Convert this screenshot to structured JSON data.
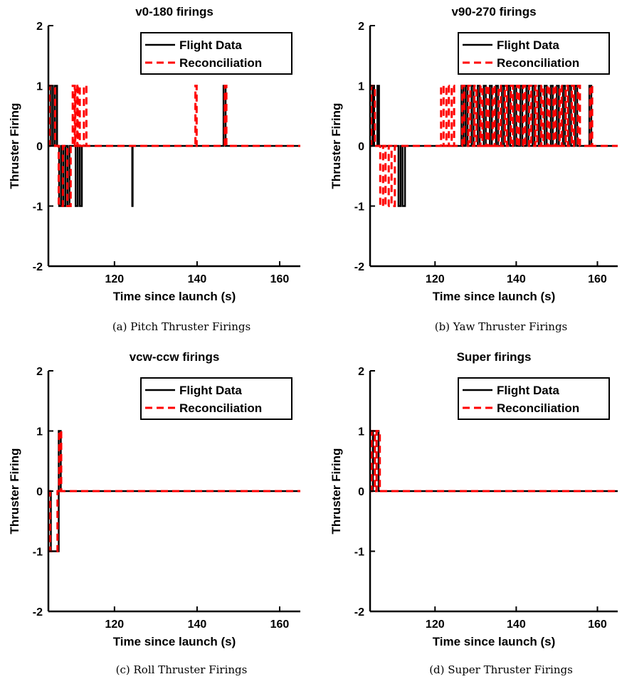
{
  "chart_data": [
    {
      "type": "line",
      "title": "v0-180 firings",
      "caption": "(a) Pitch Thruster Firings",
      "xlabel": "Time since launch (s)",
      "ylabel": "Thruster Firing",
      "xlim": [
        104,
        165
      ],
      "ylim": [
        -2,
        2
      ],
      "xticks": [
        120,
        140,
        160
      ],
      "yticks": [
        2,
        1,
        0,
        -1,
        -2
      ],
      "legend": "top-right",
      "series": [
        {
          "name": "Flight Data",
          "color": "#000000",
          "style": "solid",
          "pulses": [
            [
              104.6,
              105.1,
              1
            ],
            [
              105.6,
              106.1,
              1
            ],
            [
              106.6,
              107.1,
              -1
            ],
            [
              107.6,
              108.1,
              -1
            ],
            [
              108.6,
              109.1,
              -1
            ],
            [
              110.6,
              111.1,
              -1
            ],
            [
              111.6,
              112.1,
              -1
            ],
            [
              124.3,
              124.4,
              -1
            ],
            [
              146.4,
              146.9,
              1
            ]
          ]
        },
        {
          "name": "Reconciliation",
          "color": "#ff0000",
          "style": "dashed",
          "pulses": [
            [
              104.3,
              105.6,
              1
            ],
            [
              106.5,
              107.5,
              -1
            ],
            [
              108.6,
              109.4,
              -1
            ],
            [
              109.9,
              110.4,
              1
            ],
            [
              110.5,
              111.0,
              1
            ],
            [
              111.1,
              111.6,
              1
            ],
            [
              112.6,
              113.2,
              1
            ],
            [
              139.6,
              139.9,
              1
            ],
            [
              146.7,
              147.1,
              1
            ]
          ]
        }
      ]
    },
    {
      "type": "line",
      "title": "v90-270 firings",
      "caption": "(b) Yaw Thruster Firings",
      "xlabel": "Time since launch (s)",
      "ylabel": "Thruster Firing",
      "xlim": [
        104,
        165
      ],
      "ylim": [
        -2,
        2
      ],
      "xticks": [
        120,
        140,
        160
      ],
      "yticks": [
        2,
        1,
        0,
        -1,
        -2
      ],
      "legend": "top-right",
      "series": [
        {
          "name": "Flight Data",
          "color": "#000000",
          "style": "solid",
          "pulses": [
            [
              104.6,
              105.0,
              1
            ],
            [
              105.8,
              106.2,
              1
            ],
            [
              111.0,
              111.5,
              -1
            ],
            [
              112.0,
              112.6,
              -1
            ],
            [
              126.5,
              127.0,
              1
            ],
            [
              127.5,
              128.0,
              1
            ],
            [
              129.0,
              129.5,
              1
            ],
            [
              130.5,
              131.0,
              1
            ],
            [
              132.0,
              132.5,
              1
            ],
            [
              133.5,
              134.0,
              1
            ],
            [
              135.0,
              135.5,
              1
            ],
            [
              136.5,
              137.0,
              1
            ],
            [
              138.0,
              138.5,
              1
            ],
            [
              139.5,
              140.0,
              1
            ],
            [
              141.0,
              141.5,
              1
            ],
            [
              142.5,
              143.0,
              1
            ],
            [
              144.0,
              144.5,
              1
            ],
            [
              145.5,
              146.0,
              1
            ],
            [
              147.0,
              147.5,
              1
            ],
            [
              148.5,
              149.0,
              1
            ],
            [
              150.0,
              150.5,
              1
            ],
            [
              151.5,
              152.0,
              1
            ],
            [
              153.0,
              153.5,
              1
            ],
            [
              154.5,
              155.0,
              1
            ],
            [
              158.0,
              158.5,
              1
            ]
          ]
        },
        {
          "name": "Reconciliation",
          "color": "#ff0000",
          "style": "dashed",
          "pulses": [
            [
              104.3,
              105.2,
              1
            ],
            [
              106.5,
              107.2,
              -1
            ],
            [
              107.8,
              108.6,
              -1
            ],
            [
              109.3,
              110.1,
              -1
            ],
            [
              121.5,
              122.1,
              1
            ],
            [
              122.8,
              123.4,
              1
            ],
            [
              124.1,
              124.7,
              1
            ],
            [
              126.7,
              127.2,
              1
            ],
            [
              128.2,
              128.7,
              1
            ],
            [
              129.7,
              130.2,
              1
            ],
            [
              131.2,
              131.7,
              1
            ],
            [
              132.7,
              133.2,
              1
            ],
            [
              134.2,
              134.7,
              1
            ],
            [
              135.7,
              136.2,
              1
            ],
            [
              137.2,
              137.7,
              1
            ],
            [
              138.7,
              139.2,
              1
            ],
            [
              140.2,
              140.7,
              1
            ],
            [
              141.7,
              142.2,
              1
            ],
            [
              143.2,
              143.7,
              1
            ],
            [
              144.7,
              145.2,
              1
            ],
            [
              146.2,
              146.7,
              1
            ],
            [
              147.7,
              148.2,
              1
            ],
            [
              149.2,
              149.7,
              1
            ],
            [
              150.7,
              151.2,
              1
            ],
            [
              152.2,
              152.7,
              1
            ],
            [
              153.7,
              154.2,
              1
            ],
            [
              155.2,
              155.7,
              1
            ],
            [
              158.2,
              158.7,
              1
            ]
          ]
        }
      ]
    },
    {
      "type": "line",
      "title": "vcw-ccw firings",
      "caption": "(c) Roll Thruster Firings",
      "xlabel": "Time since launch (s)",
      "ylabel": "Thruster Firing",
      "xlim": [
        104,
        165
      ],
      "ylim": [
        -2,
        2
      ],
      "xticks": [
        120,
        140,
        160
      ],
      "yticks": [
        2,
        1,
        0,
        -1,
        -2
      ],
      "legend": "top-right",
      "series": [
        {
          "name": "Flight Data",
          "color": "#000000",
          "style": "solid",
          "pulses": [
            [
              104.6,
              106.5,
              -1
            ],
            [
              106.5,
              107.0,
              1
            ]
          ]
        },
        {
          "name": "Reconciliation",
          "color": "#ff0000",
          "style": "dashed",
          "pulses": [
            [
              104.4,
              106.2,
              -1
            ],
            [
              106.6,
              107.1,
              1
            ]
          ]
        }
      ]
    },
    {
      "type": "line",
      "title": "Super firings",
      "caption": "(d) Super Thruster Firings",
      "xlabel": "Time since launch (s)",
      "ylabel": "Thruster Firing",
      "xlim": [
        104,
        165
      ],
      "ylim": [
        -2,
        2
      ],
      "xticks": [
        120,
        140,
        160
      ],
      "yticks": [
        2,
        1,
        0,
        -1,
        -2
      ],
      "legend": "top-right",
      "series": [
        {
          "name": "Flight Data",
          "color": "#000000",
          "style": "solid",
          "pulses": [
            [
              104.7,
              106.1,
              1
            ]
          ]
        },
        {
          "name": "Reconciliation",
          "color": "#ff0000",
          "style": "dashed",
          "pulses": [
            [
              104.4,
              105.2,
              1
            ],
            [
              105.6,
              106.4,
              1
            ]
          ]
        }
      ]
    }
  ]
}
